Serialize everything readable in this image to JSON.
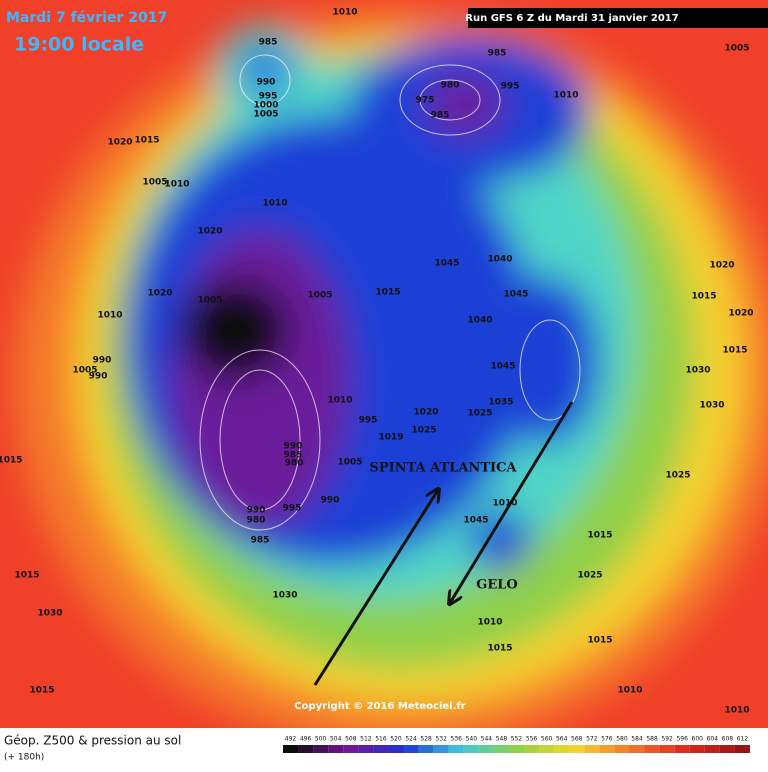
{
  "header": {
    "date": "Mardi 7 février 2017",
    "time": "19:00 locale",
    "run": "Run GFS 6 Z du Mardi 31 janvier 2017"
  },
  "annotations": [
    "SPINTA ATLANTICA",
    "GELO"
  ],
  "copyright": "Copyright © 2016 Meteociel.fr",
  "footer": {
    "title": "Géop. Z500 & pression au sol",
    "lead": "(+ 180h)"
  },
  "map": {
    "pressure_labels": [
      1010,
      985,
      990,
      995,
      1000,
      1005,
      985,
      980,
      975,
      985,
      995,
      1010,
      1005,
      1020,
      1015,
      1005,
      1010,
      1010,
      1020,
      1045,
      1040,
      1045,
      1020,
      1015,
      1020,
      1020,
      1005,
      1005,
      1015,
      1040,
      1010,
      1015,
      990,
      1005,
      990,
      1045,
      1030,
      1010,
      995,
      1019,
      1020,
      1025,
      1025,
      1035,
      1030,
      990,
      985,
      980,
      1005,
      1015,
      1025,
      990,
      995,
      990,
      980,
      985,
      1030,
      1045,
      1015,
      1025,
      1015,
      1030,
      1010,
      1015,
      1015,
      1015,
      1010,
      1010,
      1010
    ]
  },
  "legend": {
    "values": [
      492,
      496,
      500,
      504,
      508,
      512,
      516,
      520,
      524,
      528,
      532,
      536,
      540,
      544,
      548,
      552,
      556,
      560,
      564,
      568,
      572,
      576,
      580,
      584,
      588,
      592,
      596,
      600,
      604,
      608,
      612
    ]
  }
}
